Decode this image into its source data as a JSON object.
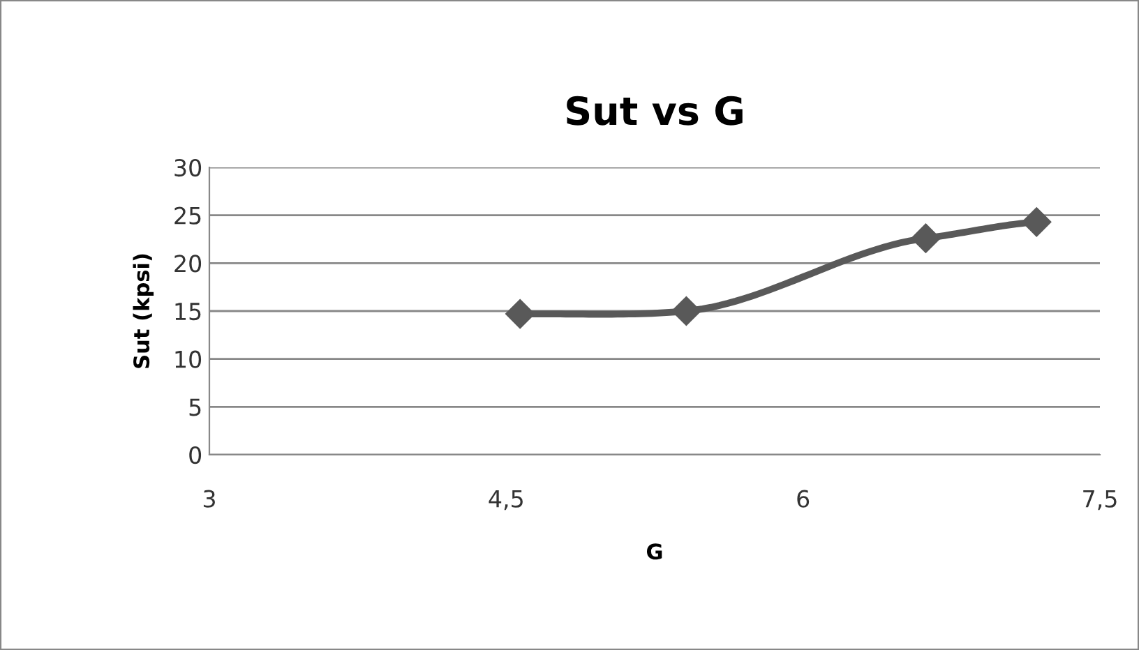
{
  "chart_data": {
    "type": "line",
    "title": "Sut vs G",
    "xlabel": "G",
    "ylabel": "Sut (kpsi)",
    "x": [
      4.57,
      5.41,
      6.62,
      7.18
    ],
    "series": [
      {
        "color": "#595959",
        "values": [
          14.7,
          15.0,
          22.6,
          24.3
        ]
      }
    ],
    "xlim": [
      3,
      7.5
    ],
    "xticks": [
      3,
      {
        "value": 4.5,
        "label": "4,5"
      },
      6,
      {
        "value": 7.5,
        "label": "7,5"
      }
    ],
    "ylim": [
      0,
      30
    ],
    "yticks": [
      0,
      5,
      10,
      15,
      20,
      25,
      30
    ],
    "grid": "y",
    "marker": "diamond",
    "line_style": "solid",
    "legend": false
  }
}
